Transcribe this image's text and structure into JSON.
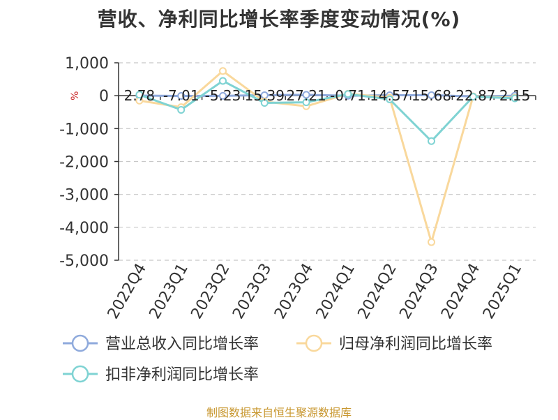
{
  "title": "营收、净利同比增长率季度变动情况(%)",
  "source_note": "制图数据来自恒生聚源数据库",
  "unit_label": "%",
  "chart_data": {
    "type": "line",
    "title": "营收、净利同比增长率季度变动情况(%)",
    "xlabel": "",
    "ylabel": "%",
    "ylim": [
      -5000,
      1000
    ],
    "yticks": [
      1000,
      0,
      -1000,
      -2000,
      -3000,
      -4000,
      -5000
    ],
    "ytick_labels": [
      "1,000",
      "0",
      "-1,000",
      "-2,000",
      "-3,000",
      "-4,000",
      "-5,000"
    ],
    "grid": true,
    "legend_position": "bottom",
    "categories": [
      "2022Q4",
      "2023Q1",
      "2023Q2",
      "2023Q3",
      "2023Q4",
      "2024Q1",
      "2024Q2",
      "2024Q3",
      "2024Q4",
      "2025Q1"
    ],
    "series": [
      {
        "name": "营业总收入同比增长率",
        "color": "#8faadc",
        "values": [
          2.78,
          -7.01,
          -5.23,
          15.39,
          27.21,
          -0.71,
          14.57,
          15.68,
          -22.87,
          2.15
        ],
        "labels": [
          "2.78",
          "-7.01",
          "-5.23",
          "15.39",
          "27.21",
          "-0.71",
          "14.57",
          "15.68",
          "-22.87",
          "2.15"
        ]
      },
      {
        "name": "归母净利润同比增长率",
        "color": "#f9d89c",
        "values": [
          -150,
          -350,
          750,
          -180,
          -320,
          60,
          -60,
          -4450,
          -20,
          -60
        ]
      },
      {
        "name": "扣非净利润同比增长率",
        "color": "#7fd3d3",
        "values": [
          30,
          -430,
          450,
          -220,
          -200,
          50,
          -110,
          -1380,
          -30,
          -80
        ]
      }
    ]
  }
}
